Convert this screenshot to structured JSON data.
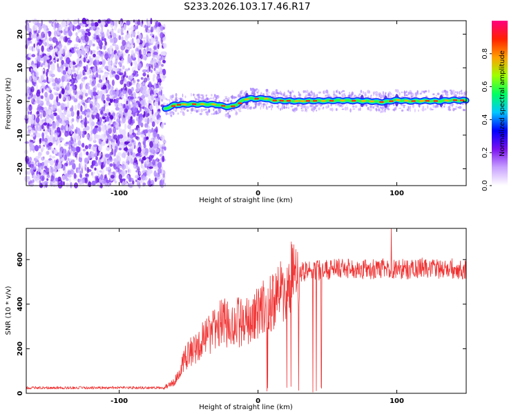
{
  "title": "S233.2026.103.17.46.R17",
  "chart_data": [
    {
      "type": "heatmap",
      "xlabel": "Height of straight line (km)",
      "ylabel": "Frequency (Hz)",
      "xlim": [
        -167,
        150
      ],
      "ylim": [
        -25,
        24
      ],
      "xticks": [
        -100,
        0,
        100
      ],
      "yticks": [
        -20,
        -10,
        0,
        10,
        20
      ],
      "noise_region_x": [
        -167,
        -67
      ],
      "signal_trace": {
        "x": [
          -67,
          -60,
          -50,
          -40,
          -30,
          -25,
          -20,
          -15,
          -10,
          -5,
          0,
          5,
          10,
          20,
          30,
          40,
          50,
          60,
          70,
          80,
          90,
          100,
          110,
          120,
          130,
          140,
          150
        ],
        "freq": [
          -2.2,
          -1.0,
          -0.8,
          -0.8,
          -0.9,
          -1.4,
          -1.6,
          -0.8,
          0.6,
          0.9,
          0.8,
          0.9,
          0.3,
          0.2,
          0.1,
          0.2,
          0.2,
          0.3,
          0.2,
          0.1,
          -0.2,
          0.4,
          0.1,
          0.2,
          0.1,
          0.4,
          0.3
        ]
      },
      "colorbar": {
        "label": "Normalized spectral amplitude",
        "ticks": [
          "0.0",
          "0.2",
          "0.4",
          "0.6",
          "0.8"
        ],
        "range": [
          0,
          1
        ],
        "colors": [
          "#ffffff",
          "#c8a0ff",
          "#7a10f0",
          "#0000ff",
          "#00c8ff",
          "#00ff60",
          "#a0ff00",
          "#ffa000",
          "#ff2000",
          "#ff0080"
        ]
      }
    },
    {
      "type": "line",
      "xlabel": "Height of straight line (km)",
      "ylabel": "SNR (10 * v/v)",
      "xlim": [
        -167,
        150
      ],
      "ylim": [
        0,
        740
      ],
      "xticks": [
        -100,
        0,
        100
      ],
      "yticks": [
        0,
        200,
        400,
        600
      ],
      "line_color": "#f03030",
      "envelope": {
        "x": [
          -167,
          -120,
          -80,
          -68,
          -60,
          -55,
          -50,
          -45,
          -40,
          -35,
          -30,
          -25,
          -20,
          -15,
          -10,
          -5,
          0,
          5,
          10,
          15,
          20,
          25,
          30,
          35,
          40,
          50,
          60,
          70,
          80,
          90,
          100,
          110,
          120,
          130,
          140,
          150
        ],
        "snr": [
          25,
          25,
          25,
          25,
          50,
          130,
          180,
          200,
          240,
          260,
          300,
          320,
          300,
          320,
          310,
          330,
          360,
          380,
          410,
          440,
          480,
          520,
          540,
          550,
          550,
          555,
          560,
          560,
          555,
          560,
          560,
          555,
          565,
          555,
          560,
          555
        ]
      },
      "spike": {
        "x": 96,
        "snr": 740
      },
      "dropout_region_x": [
        0,
        52
      ]
    }
  ]
}
